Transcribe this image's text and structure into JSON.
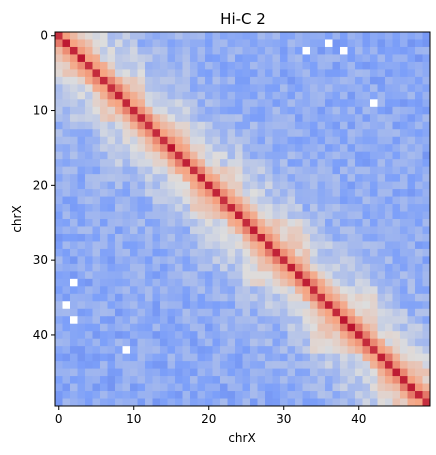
{
  "chart_data": {
    "type": "heatmap",
    "title": "Hi-C 2",
    "xlabel": "chrX",
    "ylabel": "chrX",
    "size": 50,
    "x_ticks": [
      0,
      10,
      20,
      30,
      40
    ],
    "y_ticks": [
      0,
      10,
      20,
      30,
      40
    ],
    "colormap": "coolwarm",
    "grid": false,
    "domains": [
      [
        0,
        5
      ],
      [
        5,
        11
      ],
      [
        11,
        17
      ],
      [
        17,
        24
      ],
      [
        24,
        33
      ],
      [
        33,
        42
      ],
      [
        42,
        49
      ]
    ],
    "missing_cells": [
      [
        2,
        33
      ],
      [
        1,
        36
      ],
      [
        2,
        38
      ],
      [
        9,
        42
      ],
      [
        42,
        9
      ],
      [
        33,
        2
      ],
      [
        36,
        1
      ],
      [
        38,
        2
      ]
    ]
  }
}
